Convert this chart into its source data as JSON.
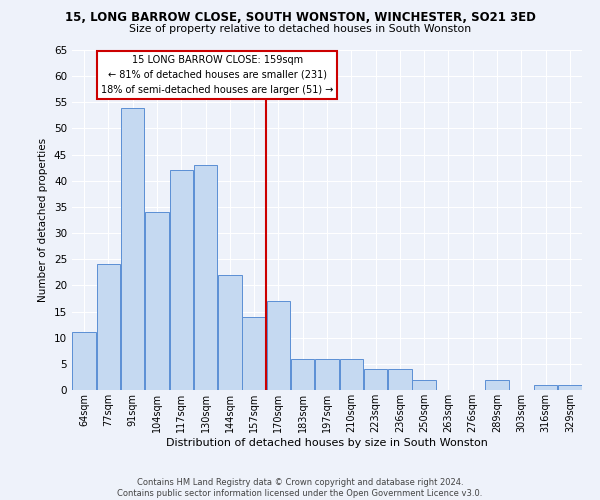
{
  "title": "15, LONG BARROW CLOSE, SOUTH WONSTON, WINCHESTER, SO21 3ED",
  "subtitle": "Size of property relative to detached houses in South Wonston",
  "xlabel": "Distribution of detached houses by size in South Wonston",
  "ylabel": "Number of detached properties",
  "bar_color": "#c5d9f1",
  "bar_edge_color": "#5b8fd4",
  "background_color": "#eef2fa",
  "grid_color": "#ffffff",
  "vline_color": "#cc0000",
  "vline_x_index": 7,
  "categories": [
    "64sqm",
    "77sqm",
    "91sqm",
    "104sqm",
    "117sqm",
    "130sqm",
    "144sqm",
    "157sqm",
    "170sqm",
    "183sqm",
    "197sqm",
    "210sqm",
    "223sqm",
    "236sqm",
    "250sqm",
    "263sqm",
    "276sqm",
    "289sqm",
    "303sqm",
    "316sqm",
    "329sqm"
  ],
  "values": [
    11,
    24,
    54,
    34,
    42,
    43,
    22,
    14,
    17,
    6,
    6,
    6,
    4,
    4,
    2,
    0,
    0,
    2,
    0,
    1,
    1
  ],
  "ylim": [
    0,
    65
  ],
  "yticks": [
    0,
    5,
    10,
    15,
    20,
    25,
    30,
    35,
    40,
    45,
    50,
    55,
    60,
    65
  ],
  "annotation_title": "15 LONG BARROW CLOSE: 159sqm",
  "annotation_line1": "← 81% of detached houses are smaller (231)",
  "annotation_line2": "18% of semi-detached houses are larger (51) →",
  "footer1": "Contains HM Land Registry data © Crown copyright and database right 2024.",
  "footer2": "Contains public sector information licensed under the Open Government Licence v3.0."
}
